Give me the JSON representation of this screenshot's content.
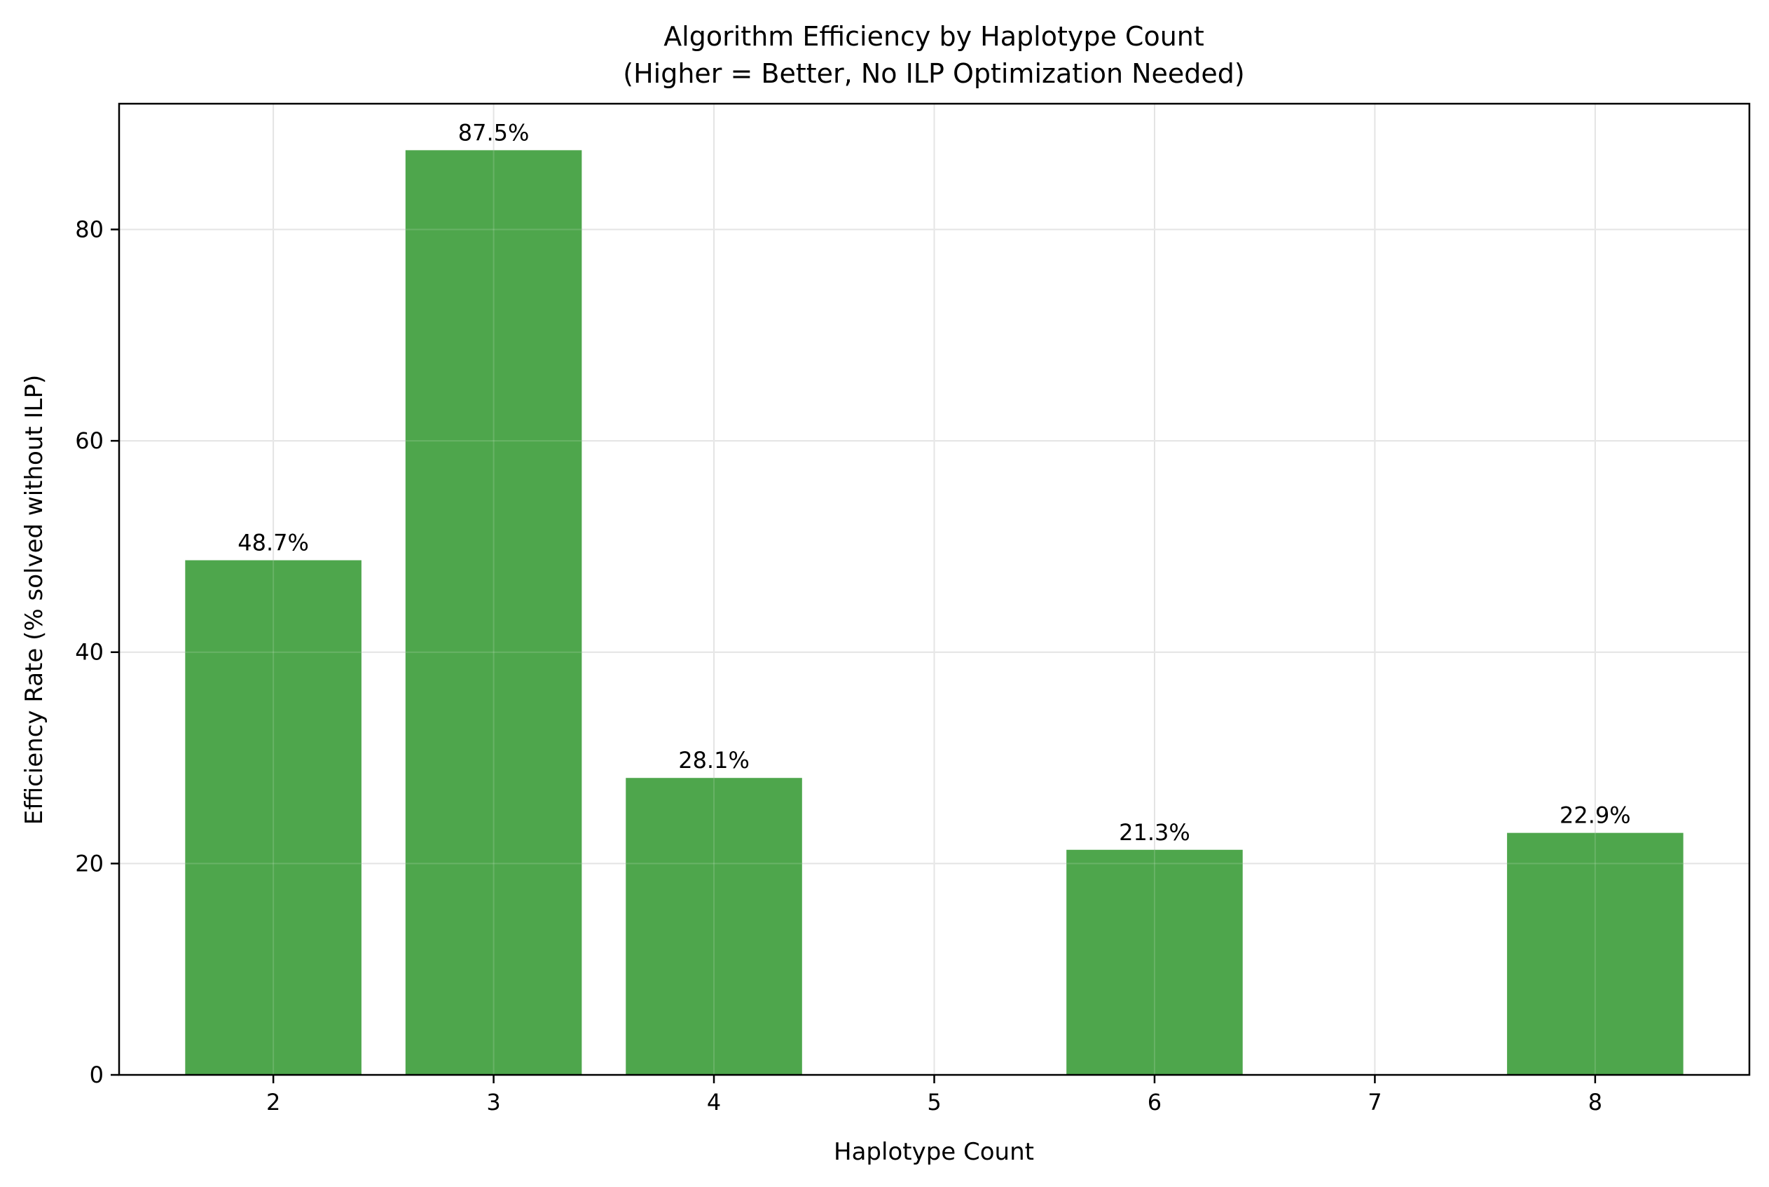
{
  "chart_data": {
    "type": "bar",
    "title": "Algorithm Efficiency by Haplotype Count",
    "subtitle": "(Higher = Better, No ILP Optimization Needed)",
    "xlabel": "Haplotype Count",
    "ylabel": "Efficiency Rate (% solved without ILP)",
    "x": [
      2,
      3,
      4,
      6,
      8
    ],
    "values": [
      48.7,
      87.5,
      28.1,
      21.3,
      22.9
    ],
    "data_labels": [
      "48.7%",
      "87.5%",
      "28.1%",
      "21.3%",
      "22.9%"
    ],
    "xticks": [
      "2",
      "3",
      "4",
      "5",
      "6",
      "7",
      "8"
    ],
    "xtick_values": [
      2,
      3,
      4,
      5,
      6,
      7,
      8
    ],
    "yticks": [
      "0",
      "20",
      "40",
      "60",
      "80"
    ],
    "ytick_values": [
      0,
      20,
      40,
      60,
      80
    ],
    "xlim": [
      1.3,
      8.7
    ],
    "ylim": [
      0,
      91.9
    ],
    "grid": true,
    "colors": {
      "bar": "#4ea64c",
      "grid": "#e0e0e0",
      "axis": "#000000"
    }
  }
}
